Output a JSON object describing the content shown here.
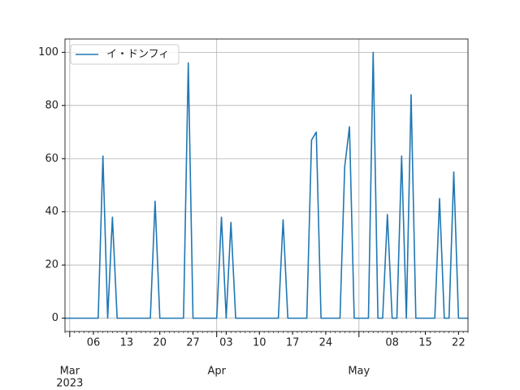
{
  "chart_data": {
    "type": "line",
    "x": [
      "2023-02-28",
      "2023-03-01",
      "2023-03-02",
      "2023-03-03",
      "2023-03-04",
      "2023-03-05",
      "2023-03-06",
      "2023-03-07",
      "2023-03-08",
      "2023-03-09",
      "2023-03-10",
      "2023-03-11",
      "2023-03-12",
      "2023-03-13",
      "2023-03-14",
      "2023-03-15",
      "2023-03-16",
      "2023-03-17",
      "2023-03-18",
      "2023-03-19",
      "2023-03-20",
      "2023-03-21",
      "2023-03-22",
      "2023-03-23",
      "2023-03-24",
      "2023-03-25",
      "2023-03-26",
      "2023-03-27",
      "2023-03-28",
      "2023-03-29",
      "2023-03-30",
      "2023-03-31",
      "2023-04-01",
      "2023-04-02",
      "2023-04-03",
      "2023-04-04",
      "2023-04-05",
      "2023-04-06",
      "2023-04-07",
      "2023-04-08",
      "2023-04-09",
      "2023-04-10",
      "2023-04-11",
      "2023-04-12",
      "2023-04-13",
      "2023-04-14",
      "2023-04-15",
      "2023-04-16",
      "2023-04-17",
      "2023-04-18",
      "2023-04-19",
      "2023-04-20",
      "2023-04-21",
      "2023-04-22",
      "2023-04-23",
      "2023-04-24",
      "2023-04-25",
      "2023-04-26",
      "2023-04-27",
      "2023-04-28",
      "2023-04-29",
      "2023-04-30",
      "2023-05-01",
      "2023-05-02",
      "2023-05-03",
      "2023-05-04",
      "2023-05-05",
      "2023-05-06",
      "2023-05-07",
      "2023-05-08",
      "2023-05-09",
      "2023-05-10",
      "2023-05-11",
      "2023-05-12",
      "2023-05-13",
      "2023-05-14",
      "2023-05-15",
      "2023-05-16",
      "2023-05-17",
      "2023-05-18",
      "2023-05-19",
      "2023-05-20",
      "2023-05-21",
      "2023-05-22",
      "2023-05-23",
      "2023-05-24"
    ],
    "series": [
      {
        "name": "イ・ドンフィ",
        "color": "#1f77b4",
        "values": [
          0,
          0,
          0,
          0,
          0,
          0,
          0,
          0,
          61,
          0,
          38,
          0,
          0,
          0,
          0,
          0,
          0,
          0,
          0,
          44,
          0,
          0,
          0,
          0,
          0,
          0,
          96,
          0,
          0,
          0,
          0,
          0,
          0,
          38,
          0,
          36,
          0,
          0,
          0,
          0,
          0,
          0,
          0,
          0,
          0,
          0,
          37,
          0,
          0,
          0,
          0,
          0,
          67,
          70,
          0,
          0,
          0,
          0,
          0,
          57,
          72,
          0,
          0,
          0,
          0,
          100,
          0,
          0,
          39,
          0,
          0,
          61,
          0,
          84,
          0,
          0,
          0,
          0,
          0,
          45,
          0,
          0,
          55,
          0,
          0,
          0
        ]
      }
    ],
    "xlim": [
      "2023-02-28",
      "2023-05-24"
    ],
    "xticks": [
      {
        "value": "2023-03-01",
        "label": "Mar"
      },
      {
        "value": "2023-04-01",
        "label": "Apr"
      },
      {
        "value": "2023-05-01",
        "label": "May"
      }
    ],
    "year_label": "2023",
    "xminorticks": [
      {
        "value": "2023-03-06",
        "label": "06"
      },
      {
        "value": "2023-03-13",
        "label": "13"
      },
      {
        "value": "2023-03-20",
        "label": "20"
      },
      {
        "value": "2023-03-27",
        "label": "27"
      },
      {
        "value": "2023-04-03",
        "label": "03"
      },
      {
        "value": "2023-04-10",
        "label": "10"
      },
      {
        "value": "2023-04-17",
        "label": "17"
      },
      {
        "value": "2023-04-24",
        "label": "24"
      },
      {
        "value": "2023-05-08",
        "label": "08"
      },
      {
        "value": "2023-05-15",
        "label": "15"
      },
      {
        "value": "2023-05-22",
        "label": "22"
      }
    ],
    "ylim": [
      -5,
      105
    ],
    "yticks": [
      0,
      20,
      40,
      60,
      80,
      100
    ],
    "grid": true,
    "legend": "upper-left"
  }
}
